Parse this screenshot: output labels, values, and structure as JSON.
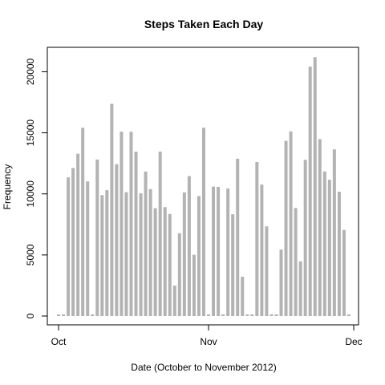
{
  "chart_data": {
    "type": "bar",
    "title": "Steps Taken Each Day",
    "xlabel": "Date (October to November 2012)",
    "ylabel": "Frequency",
    "x_range": [
      "2012-10-01",
      "2012-12-01"
    ],
    "ylim": [
      0,
      22000
    ],
    "x_ticks": [
      {
        "date": "2012-10-01",
        "label": "Oct"
      },
      {
        "date": "2012-11-01",
        "label": "Nov"
      },
      {
        "date": "2012-12-01",
        "label": "Dec"
      }
    ],
    "y_ticks": [
      {
        "value": 0,
        "label": "0"
      },
      {
        "value": 5000,
        "label": "5000"
      },
      {
        "value": 10000,
        "label": "10000"
      },
      {
        "value": 15000,
        "label": "15000"
      },
      {
        "value": 20000,
        "label": "20000"
      }
    ],
    "bar_color": "#b3b3b3",
    "grid": false,
    "dates": [
      "2012-10-01",
      "2012-10-02",
      "2012-10-03",
      "2012-10-04",
      "2012-10-05",
      "2012-10-06",
      "2012-10-07",
      "2012-10-08",
      "2012-10-09",
      "2012-10-10",
      "2012-10-11",
      "2012-10-12",
      "2012-10-13",
      "2012-10-14",
      "2012-10-15",
      "2012-10-16",
      "2012-10-17",
      "2012-10-18",
      "2012-10-19",
      "2012-10-20",
      "2012-10-21",
      "2012-10-22",
      "2012-10-23",
      "2012-10-24",
      "2012-10-25",
      "2012-10-26",
      "2012-10-27",
      "2012-10-28",
      "2012-10-29",
      "2012-10-30",
      "2012-10-31",
      "2012-11-01",
      "2012-11-02",
      "2012-11-03",
      "2012-11-04",
      "2012-11-05",
      "2012-11-06",
      "2012-11-07",
      "2012-11-08",
      "2012-11-09",
      "2012-11-10",
      "2012-11-11",
      "2012-11-12",
      "2012-11-13",
      "2012-11-14",
      "2012-11-15",
      "2012-11-16",
      "2012-11-17",
      "2012-11-18",
      "2012-11-19",
      "2012-11-20",
      "2012-11-21",
      "2012-11-22",
      "2012-11-23",
      "2012-11-24",
      "2012-11-25",
      "2012-11-26",
      "2012-11-27",
      "2012-11-28",
      "2012-11-29",
      "2012-11-30"
    ],
    "values": [
      0,
      126,
      11352,
      12116,
      13294,
      15420,
      11015,
      0,
      12811,
      9900,
      10304,
      17382,
      12426,
      15098,
      10139,
      15084,
      13452,
      10056,
      11829,
      10395,
      8821,
      13460,
      8918,
      8355,
      2492,
      6778,
      10119,
      11458,
      5018,
      9819,
      15414,
      0,
      10600,
      10571,
      0,
      10439,
      8334,
      12883,
      3219,
      0,
      0,
      12608,
      10765,
      7336,
      0,
      41,
      5441,
      14339,
      15110,
      8841,
      4472,
      12787,
      20427,
      21194,
      14478,
      11834,
      11162,
      13646,
      10183,
      7047,
      0
    ]
  }
}
